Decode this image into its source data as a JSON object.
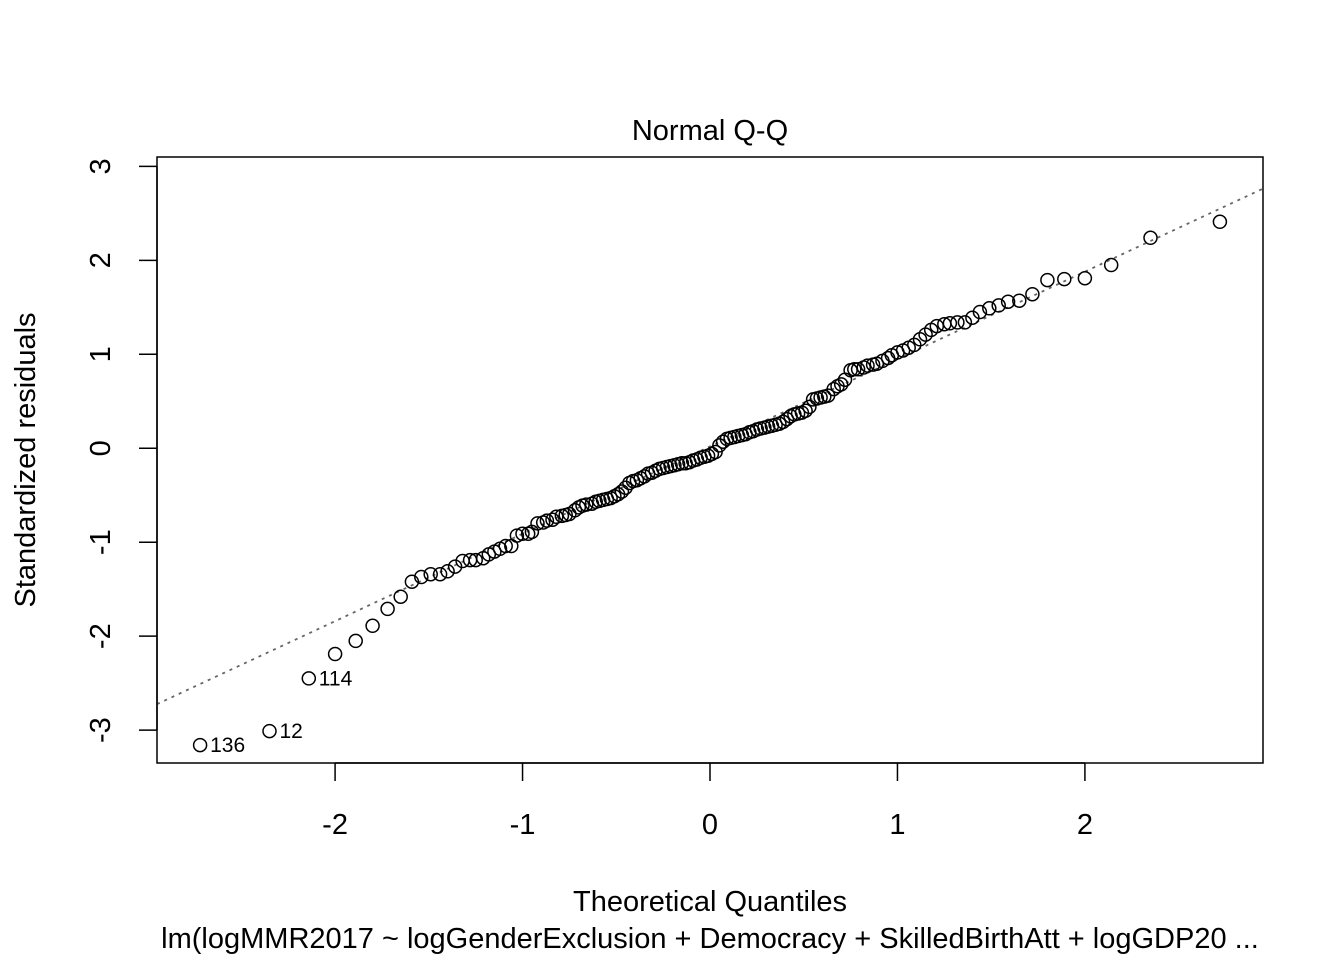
{
  "chart_data": {
    "type": "scatter",
    "title": "Normal Q-Q",
    "xlabel": "Theoretical Quantiles",
    "ylabel": "Standardized residuals",
    "subtitle": "lm(logMMR2017 ~ logGenderExclusion + Democracy + SkilledBirthAtt + logGDP20 ...",
    "xlim": [
      -2.95,
      2.95
    ],
    "ylim": [
      -3.35,
      3.1
    ],
    "xticks": [
      -2,
      -1,
      0,
      1,
      2
    ],
    "yticks": [
      -3,
      -2,
      -1,
      0,
      1,
      2,
      3
    ],
    "xtick_labels": [
      "-2",
      "-1",
      "0",
      "1",
      "2"
    ],
    "ytick_labels": [
      "-3",
      "-2",
      "-1",
      "0",
      "1",
      "2",
      "3"
    ],
    "grid": false,
    "reference_line": {
      "style": "dotted",
      "color": "#666666",
      "intercept": 0.02,
      "slope": 0.93
    },
    "labeled_points": [
      {
        "label": "136",
        "x": -2.72,
        "y": -3.16
      },
      {
        "label": "12",
        "x": -2.35,
        "y": -3.01
      },
      {
        "label": "114",
        "x": -2.14,
        "y": -2.45
      }
    ],
    "points": [
      [
        -2.72,
        -3.16
      ],
      [
        -2.35,
        -3.01
      ],
      [
        -2.14,
        -2.45
      ],
      [
        -2.0,
        -2.19
      ],
      [
        -1.89,
        -2.05
      ],
      [
        -1.8,
        -1.89
      ],
      [
        -1.72,
        -1.71
      ],
      [
        -1.65,
        -1.58
      ],
      [
        -1.59,
        -1.42
      ],
      [
        -1.54,
        -1.37
      ],
      [
        -1.49,
        -1.34
      ],
      [
        -1.44,
        -1.34
      ],
      [
        -1.4,
        -1.31
      ],
      [
        -1.36,
        -1.26
      ],
      [
        -1.32,
        -1.2
      ],
      [
        -1.28,
        -1.19
      ],
      [
        -1.25,
        -1.19
      ],
      [
        -1.21,
        -1.17
      ],
      [
        -1.18,
        -1.13
      ],
      [
        -1.15,
        -1.1
      ],
      [
        -1.12,
        -1.07
      ],
      [
        -1.09,
        -1.04
      ],
      [
        -1.06,
        -1.04
      ],
      [
        -1.03,
        -0.93
      ],
      [
        -1.0,
        -0.91
      ],
      [
        -0.97,
        -0.91
      ],
      [
        -0.95,
        -0.89
      ],
      [
        -0.92,
        -0.8
      ],
      [
        -0.89,
        -0.79
      ],
      [
        -0.87,
        -0.77
      ],
      [
        -0.84,
        -0.76
      ],
      [
        -0.82,
        -0.73
      ],
      [
        -0.79,
        -0.72
      ],
      [
        -0.77,
        -0.71
      ],
      [
        -0.75,
        -0.7
      ],
      [
        -0.72,
        -0.66
      ],
      [
        -0.7,
        -0.63
      ],
      [
        -0.68,
        -0.61
      ],
      [
        -0.66,
        -0.6
      ],
      [
        -0.63,
        -0.59
      ],
      [
        -0.61,
        -0.57
      ],
      [
        -0.59,
        -0.56
      ],
      [
        -0.57,
        -0.55
      ],
      [
        -0.55,
        -0.54
      ],
      [
        -0.53,
        -0.53
      ],
      [
        -0.51,
        -0.51
      ],
      [
        -0.49,
        -0.49
      ],
      [
        -0.47,
        -0.46
      ],
      [
        -0.45,
        -0.42
      ],
      [
        -0.43,
        -0.37
      ],
      [
        -0.41,
        -0.35
      ],
      [
        -0.39,
        -0.34
      ],
      [
        -0.37,
        -0.32
      ],
      [
        -0.35,
        -0.3
      ],
      [
        -0.33,
        -0.27
      ],
      [
        -0.31,
        -0.26
      ],
      [
        -0.29,
        -0.24
      ],
      [
        -0.27,
        -0.22
      ],
      [
        -0.25,
        -0.21
      ],
      [
        -0.23,
        -0.2
      ],
      [
        -0.21,
        -0.19
      ],
      [
        -0.19,
        -0.18
      ],
      [
        -0.17,
        -0.17
      ],
      [
        -0.15,
        -0.16
      ],
      [
        -0.13,
        -0.16
      ],
      [
        -0.11,
        -0.15
      ],
      [
        -0.09,
        -0.13
      ],
      [
        -0.07,
        -0.12
      ],
      [
        -0.05,
        -0.1
      ],
      [
        -0.03,
        -0.09
      ],
      [
        -0.01,
        -0.08
      ],
      [
        0.01,
        -0.06
      ],
      [
        0.03,
        -0.04
      ],
      [
        0.05,
        0.03
      ],
      [
        0.07,
        0.07
      ],
      [
        0.09,
        0.1
      ],
      [
        0.11,
        0.11
      ],
      [
        0.13,
        0.12
      ],
      [
        0.15,
        0.13
      ],
      [
        0.17,
        0.14
      ],
      [
        0.19,
        0.15
      ],
      [
        0.21,
        0.17
      ],
      [
        0.23,
        0.18
      ],
      [
        0.25,
        0.2
      ],
      [
        0.27,
        0.21
      ],
      [
        0.29,
        0.22
      ],
      [
        0.31,
        0.23
      ],
      [
        0.33,
        0.24
      ],
      [
        0.35,
        0.25
      ],
      [
        0.37,
        0.26
      ],
      [
        0.39,
        0.28
      ],
      [
        0.41,
        0.31
      ],
      [
        0.43,
        0.34
      ],
      [
        0.45,
        0.36
      ],
      [
        0.47,
        0.37
      ],
      [
        0.49,
        0.38
      ],
      [
        0.51,
        0.4
      ],
      [
        0.53,
        0.44
      ],
      [
        0.55,
        0.52
      ],
      [
        0.57,
        0.53
      ],
      [
        0.59,
        0.54
      ],
      [
        0.61,
        0.55
      ],
      [
        0.63,
        0.56
      ],
      [
        0.66,
        0.63
      ],
      [
        0.68,
        0.66
      ],
      [
        0.7,
        0.68
      ],
      [
        0.72,
        0.73
      ],
      [
        0.75,
        0.83
      ],
      [
        0.77,
        0.84
      ],
      [
        0.79,
        0.84
      ],
      [
        0.82,
        0.86
      ],
      [
        0.84,
        0.88
      ],
      [
        0.87,
        0.89
      ],
      [
        0.89,
        0.9
      ],
      [
        0.92,
        0.93
      ],
      [
        0.95,
        0.96
      ],
      [
        0.97,
        0.99
      ],
      [
        1.0,
        1.02
      ],
      [
        1.03,
        1.04
      ],
      [
        1.06,
        1.07
      ],
      [
        1.09,
        1.1
      ],
      [
        1.12,
        1.16
      ],
      [
        1.15,
        1.21
      ],
      [
        1.18,
        1.26
      ],
      [
        1.21,
        1.3
      ],
      [
        1.25,
        1.32
      ],
      [
        1.28,
        1.33
      ],
      [
        1.32,
        1.34
      ],
      [
        1.36,
        1.34
      ],
      [
        1.4,
        1.39
      ],
      [
        1.44,
        1.45
      ],
      [
        1.49,
        1.49
      ],
      [
        1.54,
        1.52
      ],
      [
        1.59,
        1.56
      ],
      [
        1.65,
        1.57
      ],
      [
        1.72,
        1.64
      ],
      [
        1.8,
        1.79
      ],
      [
        1.89,
        1.8
      ],
      [
        2.0,
        1.81
      ],
      [
        2.14,
        1.95
      ],
      [
        2.35,
        2.24
      ],
      [
        2.72,
        2.41
      ]
    ]
  }
}
